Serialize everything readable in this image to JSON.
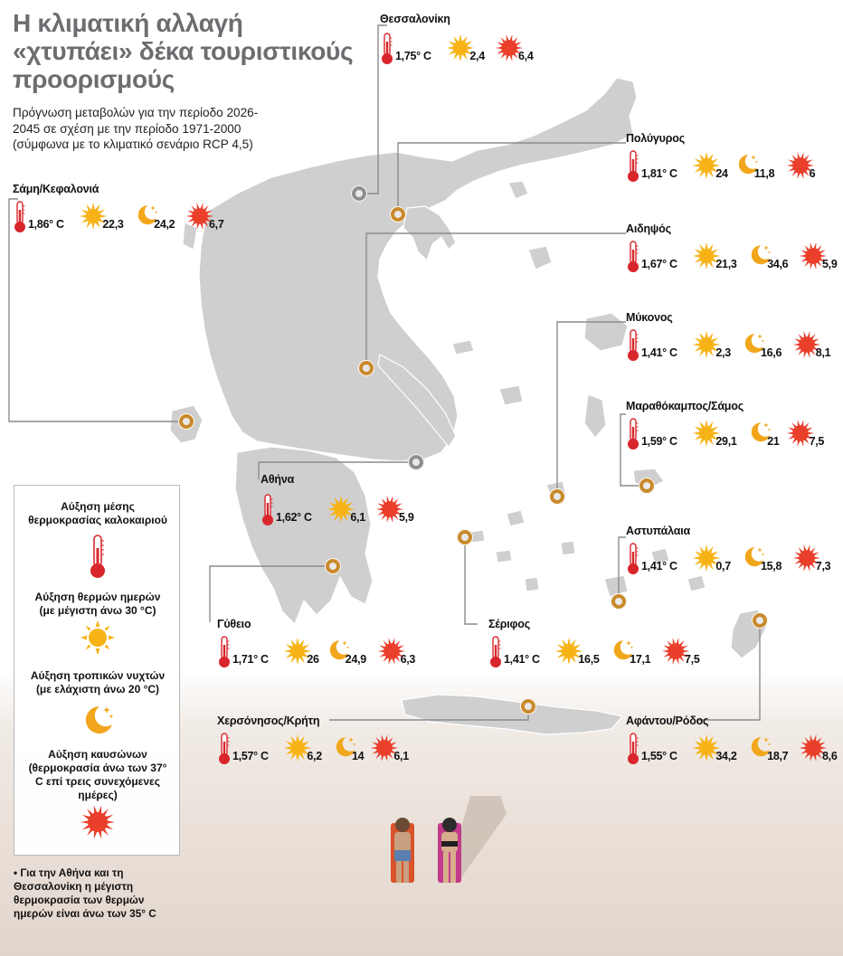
{
  "title": "Η κλιματική αλλαγή «χτυπάει» δέκα τουριστικούς προορισμούς",
  "subtitle": "Πρόγνωση μεταβολών για την περίοδο 2026-2045 σε σχέση με την περίοδο 1971-2000 (σύμφωνα με το κλιματικό σενάριο RCP 4,5)",
  "colors": {
    "land": "#cfcfcf",
    "marker_orange": "#c98a2c",
    "marker_grey": "#8f8f8f",
    "thermometer": "#d8262c",
    "sun": "#f7b316",
    "moon": "#f2a61b",
    "heatwave": "#ea3f2b",
    "leader_line": "#8c8c8c"
  },
  "icons": {
    "temperature": "thermometer-icon",
    "hot_days": "sun-icon",
    "tropical_nights": "moon-stars-icon",
    "heatwaves": "heatwave-sun-icon"
  },
  "destinations": [
    {
      "name": "Θεσσαλονίκη",
      "temp": "1,75° C",
      "hot_days": "2,4",
      "tropical_nights": null,
      "heatwaves": "6,4",
      "marker": "grey"
    },
    {
      "name": "Πολύγυρος",
      "temp": "1,81° C",
      "hot_days": "24",
      "tropical_nights": "11,8",
      "heatwaves": "6",
      "marker": "orange"
    },
    {
      "name": "Σάμη/Κεφαλονιά",
      "temp": "1,86° C",
      "hot_days": "22,3",
      "tropical_nights": "24,2",
      "heatwaves": "6,7",
      "marker": "orange"
    },
    {
      "name": "Αιδηψός",
      "temp": "1,67° C",
      "hot_days": "21,3",
      "tropical_nights": "34,6",
      "heatwaves": "5,9",
      "marker": "orange"
    },
    {
      "name": "Μύκονος",
      "temp": "1,41° C",
      "hot_days": "2,3",
      "tropical_nights": "16,6",
      "heatwaves": "8,1",
      "marker": "orange"
    },
    {
      "name": "Μαραθόκαμπος/Σάμος",
      "temp": "1,59° C",
      "hot_days": "29,1",
      "tropical_nights": "21",
      "heatwaves": "7,5",
      "marker": "orange"
    },
    {
      "name": "Αθήνα",
      "temp": "1,62° C",
      "hot_days": "6,1",
      "tropical_nights": null,
      "heatwaves": "5,9",
      "marker": "grey"
    },
    {
      "name": "Αστυπάλαια",
      "temp": "1,41° C",
      "hot_days": "0,7",
      "tropical_nights": "15,8",
      "heatwaves": "7,3",
      "marker": "orange"
    },
    {
      "name": "Γύθειο",
      "temp": "1,71° C",
      "hot_days": "26",
      "tropical_nights": "24,9",
      "heatwaves": "6,3",
      "marker": "orange"
    },
    {
      "name": "Σέριφος",
      "temp": "1,41° C",
      "hot_days": "16,5",
      "tropical_nights": "17,1",
      "heatwaves": "7,5",
      "marker": "orange"
    },
    {
      "name": "Χερσόνησος/Κρήτη",
      "temp": "1,57° C",
      "hot_days": "6,2",
      "tropical_nights": "14",
      "heatwaves": "6,1",
      "marker": "orange"
    },
    {
      "name": "Αφάντου/Ρόδος",
      "temp": "1,55° C",
      "hot_days": "34,2",
      "tropical_nights": "18,7",
      "heatwaves": "8,6",
      "marker": "orange"
    }
  ],
  "legend": {
    "temp_label": "Αύξηση μέσης θερμοκρασίας καλοκαιριού",
    "hot_days_label": "Αύξηση θερμών ημερών (με μέγιστη άνω 30 °C)",
    "tropical_nights_label": "Αύξηση τροπικών νυχτών (με ελάχιστη άνω 20 °C)",
    "heatwaves_label": "Αύξηση καυσώνων (θερμοκρασία άνω των 37° C επί τρεις συνεχόμενες ημέρες)"
  },
  "footnote": "• Για την Αθήνα και τη Θεσσαλονίκη η μέγιστη θερμοκρασία των θερμών ημερών είναι άνω των 35° C"
}
